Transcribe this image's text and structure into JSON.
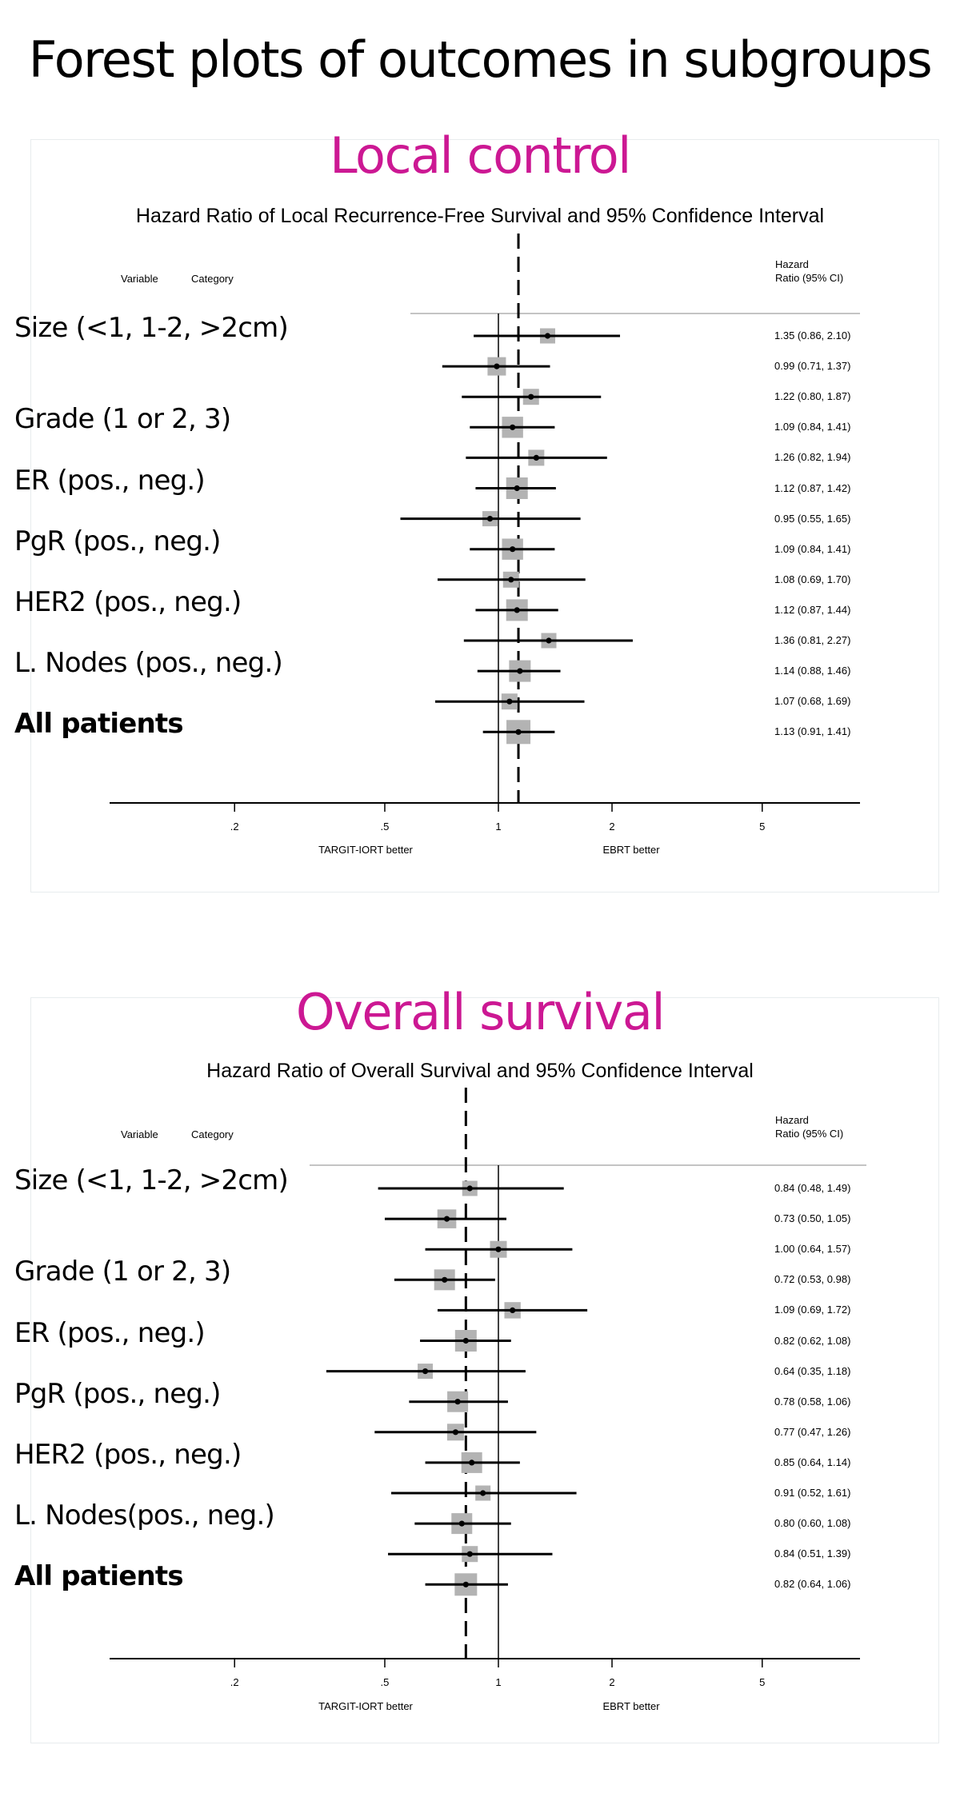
{
  "page": {
    "title": "Forest plots of outcomes in subgroups",
    "accent_color": "#CC1893"
  },
  "chart_data": [
    {
      "type": "forest",
      "section_title": "Local control",
      "title": "Hazard Ratio of Local Recurrence-Free Survival and 95% Confidence Interval",
      "header": {
        "variable": "Variable",
        "category": "Category",
        "hr_line1": "Hazard",
        "hr_line2": "Ratio (95% CI)"
      },
      "xscale": "log",
      "xlim": [
        0.125,
        7.5
      ],
      "xticks": [
        0.2,
        0.5,
        1,
        2,
        5
      ],
      "xtick_labels": [
        ".2",
        ".5",
        "1",
        "2",
        "5"
      ],
      "xlabel_left": "TARGIT-IORT better",
      "xlabel_right": "EBRT better",
      "reference_line": 1,
      "overall_line": 1.13,
      "group_labels": [
        {
          "label": "Size (<1, 1-2, >2cm)",
          "row": 0,
          "bold": false
        },
        {
          "label": "Grade (1 or 2, 3)",
          "row": 3,
          "bold": false
        },
        {
          "label": "ER (pos., neg.)",
          "row": 5,
          "bold": false
        },
        {
          "label": "PgR (pos., neg.)",
          "row": 7,
          "bold": false
        },
        {
          "label": "HER2 (pos., neg.)",
          "row": 9,
          "bold": false
        },
        {
          "label": "L. Nodes (pos., neg.)",
          "row": 11,
          "bold": false
        },
        {
          "label": "All patients",
          "row": 13,
          "bold": true
        }
      ],
      "rows": [
        {
          "hr": 1.35,
          "lo": 0.86,
          "hi": 2.1,
          "weight": 0.45,
          "text": "1.35 (0.86, 2.10)"
        },
        {
          "hr": 0.99,
          "lo": 0.71,
          "hi": 1.37,
          "weight": 0.65,
          "text": "0.99 (0.71, 1.37)"
        },
        {
          "hr": 1.22,
          "lo": 0.8,
          "hi": 1.87,
          "weight": 0.5,
          "text": "1.22 (0.80, 1.87)"
        },
        {
          "hr": 1.09,
          "lo": 0.84,
          "hi": 1.41,
          "weight": 0.82,
          "text": "1.09 (0.84, 1.41)"
        },
        {
          "hr": 1.26,
          "lo": 0.82,
          "hi": 1.94,
          "weight": 0.5,
          "text": "1.26 (0.82, 1.94)"
        },
        {
          "hr": 1.12,
          "lo": 0.87,
          "hi": 1.42,
          "weight": 0.85,
          "text": "1.12 (0.87, 1.42)"
        },
        {
          "hr": 0.95,
          "lo": 0.55,
          "hi": 1.65,
          "weight": 0.45,
          "text": "0.95 (0.55, 1.65)"
        },
        {
          "hr": 1.09,
          "lo": 0.84,
          "hi": 1.41,
          "weight": 0.82,
          "text": "1.09 (0.84, 1.41)"
        },
        {
          "hr": 1.08,
          "lo": 0.69,
          "hi": 1.7,
          "weight": 0.5,
          "text": "1.08 (0.69, 1.70)"
        },
        {
          "hr": 1.12,
          "lo": 0.87,
          "hi": 1.44,
          "weight": 0.85,
          "text": "1.12 (0.87, 1.44)"
        },
        {
          "hr": 1.36,
          "lo": 0.81,
          "hi": 2.27,
          "weight": 0.45,
          "text": "1.36 (0.81, 2.27)"
        },
        {
          "hr": 1.14,
          "lo": 0.88,
          "hi": 1.46,
          "weight": 0.85,
          "text": "1.14 (0.88, 1.46)"
        },
        {
          "hr": 1.07,
          "lo": 0.68,
          "hi": 1.69,
          "weight": 0.5,
          "text": "1.07 (0.68, 1.69)"
        },
        {
          "hr": 1.13,
          "lo": 0.91,
          "hi": 1.41,
          "weight": 1.0,
          "text": "1.13 (0.91, 1.41)"
        }
      ]
    },
    {
      "type": "forest",
      "section_title": "Overall survival",
      "title": "Hazard Ratio of Overall Survival and 95% Confidence Interval",
      "header": {
        "variable": "Variable",
        "category": "Category",
        "hr_line1": "Hazard",
        "hr_line2": "Ratio (95% CI)"
      },
      "xscale": "log",
      "xlim": [
        0.125,
        7.5
      ],
      "xticks": [
        0.2,
        0.5,
        1,
        2,
        5
      ],
      "xtick_labels": [
        ".2",
        ".5",
        "1",
        "2",
        "5"
      ],
      "xlabel_left": "TARGIT-IORT better",
      "xlabel_right": "EBRT better",
      "reference_line": 1,
      "overall_line": 0.82,
      "group_labels": [
        {
          "label": "Size (<1, 1-2, >2cm)",
          "row": 0,
          "bold": false
        },
        {
          "label": "Grade (1 or 2, 3)",
          "row": 3,
          "bold": false
        },
        {
          "label": "ER (pos., neg.)",
          "row": 5,
          "bold": false
        },
        {
          "label": "PgR (pos., neg.)",
          "row": 7,
          "bold": false
        },
        {
          "label": "HER2 (pos., neg.)",
          "row": 9,
          "bold": false
        },
        {
          "label": "L. Nodes(pos., neg.)",
          "row": 11,
          "bold": false
        },
        {
          "label": "All patients",
          "row": 13,
          "bold": true
        }
      ],
      "rows": [
        {
          "hr": 0.84,
          "lo": 0.48,
          "hi": 1.49,
          "weight": 0.45,
          "text": "0.84 (0.48, 1.49)"
        },
        {
          "hr": 0.73,
          "lo": 0.5,
          "hi": 1.05,
          "weight": 0.68,
          "text": "0.73 (0.50, 1.05)"
        },
        {
          "hr": 1.0,
          "lo": 0.64,
          "hi": 1.57,
          "weight": 0.55,
          "text": "1.00 (0.64, 1.57)"
        },
        {
          "hr": 0.72,
          "lo": 0.53,
          "hi": 0.98,
          "weight": 0.8,
          "text": "0.72 (0.53, 0.98)"
        },
        {
          "hr": 1.09,
          "lo": 0.69,
          "hi": 1.72,
          "weight": 0.52,
          "text": "1.09 (0.69, 1.72)"
        },
        {
          "hr": 0.82,
          "lo": 0.62,
          "hi": 1.08,
          "weight": 0.85,
          "text": "0.82 (0.62, 1.08)"
        },
        {
          "hr": 0.64,
          "lo": 0.35,
          "hi": 1.18,
          "weight": 0.45,
          "text": "0.64 (0.35, 1.18)"
        },
        {
          "hr": 0.78,
          "lo": 0.58,
          "hi": 1.06,
          "weight": 0.8,
          "text": "0.78 (0.58, 1.06)"
        },
        {
          "hr": 0.77,
          "lo": 0.47,
          "hi": 1.26,
          "weight": 0.55,
          "text": "0.77 (0.47, 1.26)"
        },
        {
          "hr": 0.85,
          "lo": 0.64,
          "hi": 1.14,
          "weight": 0.8,
          "text": "0.85 (0.64, 1.14)"
        },
        {
          "hr": 0.91,
          "lo": 0.52,
          "hi": 1.61,
          "weight": 0.45,
          "text": "0.91 (0.52, 1.61)"
        },
        {
          "hr": 0.8,
          "lo": 0.6,
          "hi": 1.08,
          "weight": 0.8,
          "text": "0.80 (0.60, 1.08)"
        },
        {
          "hr": 0.84,
          "lo": 0.51,
          "hi": 1.39,
          "weight": 0.5,
          "text": "0.84 (0.51, 1.39)"
        },
        {
          "hr": 0.82,
          "lo": 0.64,
          "hi": 1.06,
          "weight": 0.9,
          "text": "0.82 (0.64, 1.06)"
        }
      ]
    }
  ]
}
